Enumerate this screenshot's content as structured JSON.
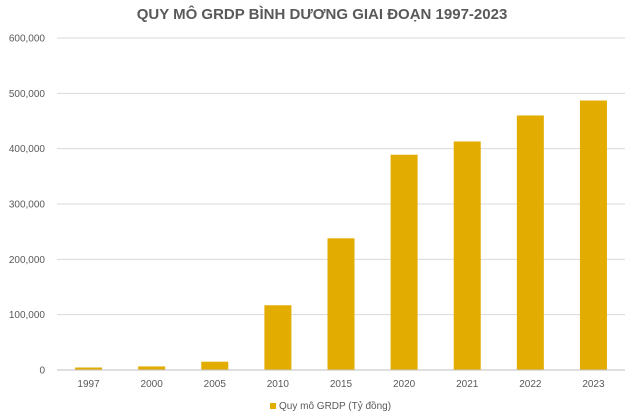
{
  "chart_data": {
    "type": "bar",
    "title": "QUY MÔ GRDP BÌNH DƯƠNG GIAI ĐOẠN 1997-2023",
    "xlabel": "",
    "ylabel": "",
    "categories": [
      "1997",
      "2000",
      "2005",
      "2010",
      "2015",
      "2020",
      "2021",
      "2022",
      "2023"
    ],
    "series": [
      {
        "name": "Quy mô GRDP (Tỷ đồng)",
        "color": "#E2AC00",
        "values": [
          4500,
          6500,
          15000,
          117000,
          238000,
          389000,
          413000,
          460000,
          487000
        ]
      }
    ],
    "ylim": [
      0,
      600000
    ],
    "yticks": [
      0,
      100000,
      200000,
      300000,
      400000,
      500000,
      600000
    ],
    "ytick_labels": [
      "0",
      "100,000",
      "200,000",
      "300,000",
      "400,000",
      "500,000",
      "600,000"
    ],
    "grid": true,
    "legend_position": "bottom"
  }
}
